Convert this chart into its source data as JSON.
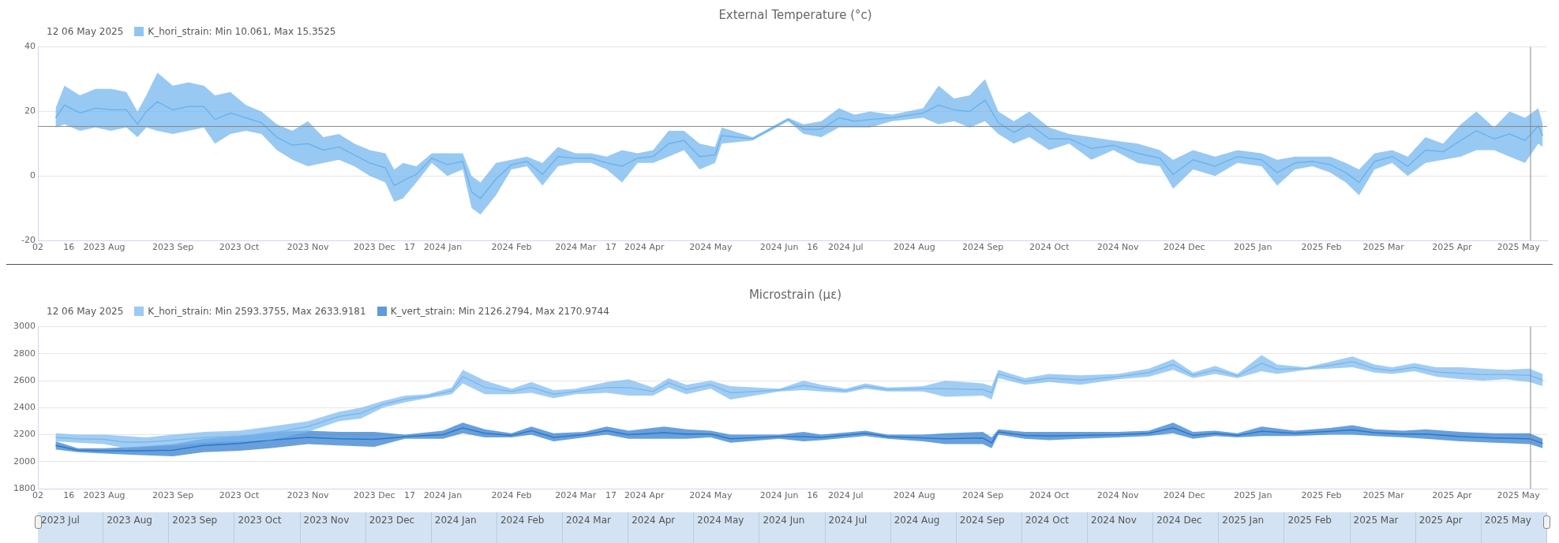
{
  "chart_data": [
    {
      "type": "line",
      "title": "External Temperature (°c)",
      "annotations": [
        "12 06 May 2025"
      ],
      "legend": "top left",
      "grid": "y",
      "xlim": [
        "2023-07-02",
        "2025-05-14"
      ],
      "xticks": [
        {
          "value": "2023-07-02",
          "label": "02"
        },
        {
          "value": "2023-07-16",
          "label": "16"
        },
        {
          "value": "2023-08-01",
          "label": "2023 Aug"
        },
        {
          "value": "2023-09-01",
          "label": "2023 Sep"
        },
        {
          "value": "2023-10-01",
          "label": "2023 Oct"
        },
        {
          "value": "2023-11-01",
          "label": "2023 Nov"
        },
        {
          "value": "2023-12-01",
          "label": "2023 Dec"
        },
        {
          "value": "2023-12-17",
          "label": "17"
        },
        {
          "value": "2024-01-01",
          "label": "2024 Jan"
        },
        {
          "value": "2024-02-01",
          "label": "2024 Feb"
        },
        {
          "value": "2024-03-01",
          "label": "2024 Mar"
        },
        {
          "value": "2024-03-17",
          "label": "17"
        },
        {
          "value": "2024-04-01",
          "label": "2024 Apr"
        },
        {
          "value": "2024-05-01",
          "label": "2024 May"
        },
        {
          "value": "2024-06-01",
          "label": "2024 Jun"
        },
        {
          "value": "2024-06-16",
          "label": "16"
        },
        {
          "value": "2024-07-01",
          "label": "2024 Jul"
        },
        {
          "value": "2024-08-01",
          "label": "2024 Aug"
        },
        {
          "value": "2024-09-01",
          "label": "2024 Sep"
        },
        {
          "value": "2024-10-01",
          "label": "2024 Oct"
        },
        {
          "value": "2024-11-01",
          "label": "2024 Nov"
        },
        {
          "value": "2024-12-01",
          "label": "2024 Dec"
        },
        {
          "value": "2025-01-01",
          "label": "2025 Jan"
        },
        {
          "value": "2025-02-01",
          "label": "2025 Feb"
        },
        {
          "value": "2025-03-01",
          "label": "2025 Mar"
        },
        {
          "value": "2025-04-01",
          "label": "2025 Apr"
        },
        {
          "value": "2025-05-01",
          "label": "2025 May"
        }
      ],
      "ylim": [
        -20,
        40
      ],
      "yticks": [
        -20,
        0,
        20,
        40
      ],
      "ref_lines": [
        {
          "axis": "y",
          "value": 15.35,
          "color": "#888888"
        },
        {
          "axis": "x",
          "value": "2025-05-06T12:00",
          "color": "#888888"
        }
      ],
      "series": [
        {
          "name": "K_hori_strain: Min 10.061, Max 15.3525",
          "color": "#6cb2ec",
          "x": [
            "2023-07-10",
            "2023-07-14",
            "2023-07-21",
            "2023-07-28",
            "2023-08-04",
            "2023-08-11",
            "2023-08-16",
            "2023-08-20",
            "2023-08-25",
            "2023-09-01",
            "2023-09-08",
            "2023-09-15",
            "2023-09-20",
            "2023-09-27",
            "2023-10-04",
            "2023-10-11",
            "2023-10-18",
            "2023-10-25",
            "2023-11-01",
            "2023-11-08",
            "2023-11-15",
            "2023-11-22",
            "2023-11-29",
            "2023-12-06",
            "2023-12-10",
            "2023-12-14",
            "2023-12-20",
            "2023-12-27",
            "2024-01-03",
            "2024-01-10",
            "2024-01-14",
            "2024-01-18",
            "2024-01-25",
            "2024-02-01",
            "2024-02-08",
            "2024-02-15",
            "2024-02-22",
            "2024-03-01",
            "2024-03-08",
            "2024-03-15",
            "2024-03-22",
            "2024-03-29",
            "2024-04-05",
            "2024-04-12",
            "2024-04-19",
            "2024-04-26",
            "2024-05-03",
            "2024-05-06",
            "2024-05-20",
            "2024-06-05",
            "2024-06-12",
            "2024-06-20",
            "2024-06-28",
            "2024-07-05",
            "2024-07-12",
            "2024-07-22",
            "2024-08-05",
            "2024-08-12",
            "2024-08-19",
            "2024-08-26",
            "2024-09-02",
            "2024-09-08",
            "2024-09-15",
            "2024-09-22",
            "2024-10-01",
            "2024-10-10",
            "2024-10-20",
            "2024-10-30",
            "2024-11-10",
            "2024-11-20",
            "2024-11-26",
            "2024-12-05",
            "2024-12-15",
            "2024-12-25",
            "2025-01-05",
            "2025-01-12",
            "2025-01-20",
            "2025-01-28",
            "2025-02-05",
            "2025-02-12",
            "2025-02-18",
            "2025-02-25",
            "2025-03-05",
            "2025-03-12",
            "2025-03-20",
            "2025-03-28",
            "2025-04-05",
            "2025-04-12",
            "2025-04-20",
            "2025-04-27",
            "2025-05-04",
            "2025-05-10",
            "2025-05-12"
          ],
          "lower": [
            15,
            16,
            14,
            15,
            14,
            15,
            12,
            15,
            14,
            13,
            14,
            15,
            10,
            13,
            14,
            13,
            8,
            5,
            3,
            4,
            5,
            3,
            0,
            -2,
            -8,
            -7,
            -2,
            4,
            0,
            2,
            -10,
            -12,
            -6,
            2,
            3,
            -3,
            3,
            4,
            4,
            2,
            -2,
            4,
            4,
            6,
            8,
            2,
            4,
            10,
            11,
            17,
            13,
            12,
            15,
            15,
            15,
            17,
            18,
            16,
            17,
            15,
            17,
            13,
            10,
            12,
            8,
            10,
            5,
            8,
            4,
            3,
            -4,
            2,
            0,
            4,
            3,
            -3,
            2,
            3,
            1,
            -2,
            -6,
            2,
            4,
            0,
            4,
            5,
            6,
            8,
            8,
            6,
            4,
            10,
            9
          ],
          "upper": [
            21,
            28,
            25,
            27,
            27,
            26,
            20,
            25,
            32,
            28,
            29,
            28,
            25,
            26,
            22,
            20,
            16,
            14,
            17,
            12,
            13,
            10,
            8,
            7,
            2,
            4,
            3,
            7,
            7,
            7,
            0,
            -2,
            4,
            5,
            6,
            4,
            9,
            7,
            7,
            6,
            8,
            7,
            8,
            14,
            14,
            10,
            9,
            15,
            12,
            18,
            16,
            17,
            21,
            19,
            20,
            19,
            21,
            28,
            24,
            25,
            30,
            20,
            17,
            20,
            15,
            13,
            12,
            11,
            10,
            8,
            5,
            8,
            6,
            8,
            7,
            5,
            6,
            6,
            6,
            4,
            2,
            7,
            8,
            6,
            12,
            10,
            16,
            20,
            15,
            20,
            18,
            21,
            16
          ],
          "values": [
            18,
            22,
            19.5,
            21,
            20.5,
            20.5,
            16,
            20,
            23,
            20.5,
            21.5,
            21.5,
            17.5,
            19.5,
            18,
            16.5,
            12,
            9.5,
            10,
            8,
            9,
            6.5,
            4,
            2.5,
            -3,
            -1.5,
            0.5,
            5.5,
            3.5,
            4.5,
            -5,
            -7,
            -1,
            3.5,
            4.5,
            0.5,
            6,
            5.5,
            5.5,
            4,
            3,
            5.5,
            6,
            10,
            11,
            6,
            6.5,
            12.5,
            11.5,
            17.5,
            14.5,
            14.5,
            18,
            17,
            17.5,
            18,
            19.5,
            22,
            20.5,
            20,
            23.5,
            16.5,
            13.5,
            16,
            11.5,
            11.5,
            8.5,
            9.5,
            7,
            5.5,
            0.5,
            5,
            3,
            6,
            5,
            1,
            4,
            4.5,
            3.5,
            1,
            -2,
            4.5,
            6,
            3,
            8,
            7.5,
            11,
            14,
            11.5,
            13,
            11,
            15.5,
            12.5
          ]
        }
      ]
    },
    {
      "type": "line",
      "title": "Microstrain (με)",
      "annotations": [
        "12 06 May 2025"
      ],
      "legend": "top left",
      "grid": "y",
      "xlim": [
        "2023-07-02",
        "2025-05-14"
      ],
      "xticks": [
        {
          "value": "2023-07-02",
          "label": "02"
        },
        {
          "value": "2023-07-16",
          "label": "16"
        },
        {
          "value": "2023-08-01",
          "label": "2023 Aug"
        },
        {
          "value": "2023-09-01",
          "label": "2023 Sep"
        },
        {
          "value": "2023-10-01",
          "label": "2023 Oct"
        },
        {
          "value": "2023-11-01",
          "label": "2023 Nov"
        },
        {
          "value": "2023-12-01",
          "label": "2023 Dec"
        },
        {
          "value": "2023-12-17",
          "label": "17"
        },
        {
          "value": "2024-01-01",
          "label": "2024 Jan"
        },
        {
          "value": "2024-02-01",
          "label": "2024 Feb"
        },
        {
          "value": "2024-03-01",
          "label": "2024 Mar"
        },
        {
          "value": "2024-03-17",
          "label": "17"
        },
        {
          "value": "2024-04-01",
          "label": "2024 Apr"
        },
        {
          "value": "2024-05-01",
          "label": "2024 May"
        },
        {
          "value": "2024-06-01",
          "label": "2024 Jun"
        },
        {
          "value": "2024-06-16",
          "label": "16"
        },
        {
          "value": "2024-07-01",
          "label": "2024 Jul"
        },
        {
          "value": "2024-08-01",
          "label": "2024 Aug"
        },
        {
          "value": "2024-09-01",
          "label": "2024 Sep"
        },
        {
          "value": "2024-10-01",
          "label": "2024 Oct"
        },
        {
          "value": "2024-11-01",
          "label": "2024 Nov"
        },
        {
          "value": "2024-12-01",
          "label": "2024 Dec"
        },
        {
          "value": "2025-01-01",
          "label": "2025 Jan"
        },
        {
          "value": "2025-02-01",
          "label": "2025 Feb"
        },
        {
          "value": "2025-03-01",
          "label": "2025 Mar"
        },
        {
          "value": "2025-04-01",
          "label": "2025 Apr"
        },
        {
          "value": "2025-05-01",
          "label": "2025 May"
        }
      ],
      "ylim": [
        1800,
        3000
      ],
      "yticks": [
        1800,
        2000,
        2200,
        2400,
        2600,
        2800,
        3000
      ],
      "ref_lines": [
        {
          "axis": "x",
          "value": "2025-05-06T12:00",
          "color": "#888888"
        }
      ],
      "series": [
        {
          "name": "K_hori_strain: Min 2593.3755, Max 2633.9181",
          "color": "#7ab8ee",
          "x": [
            "2023-07-10",
            "2023-07-20",
            "2023-08-01",
            "2023-08-10",
            "2023-08-20",
            "2023-09-01",
            "2023-09-15",
            "2023-10-01",
            "2023-10-15",
            "2023-11-01",
            "2023-11-15",
            "2023-11-25",
            "2023-12-05",
            "2023-12-15",
            "2023-12-25",
            "2024-01-05",
            "2024-01-10",
            "2024-01-20",
            "2024-02-01",
            "2024-02-10",
            "2024-02-20",
            "2024-03-01",
            "2024-03-15",
            "2024-03-25",
            "2024-04-05",
            "2024-04-12",
            "2024-04-20",
            "2024-05-01",
            "2024-05-10",
            "2024-06-01",
            "2024-06-12",
            "2024-06-20",
            "2024-07-01",
            "2024-07-10",
            "2024-07-20",
            "2024-08-05",
            "2024-08-15",
            "2024-09-01",
            "2024-09-05",
            "2024-09-08",
            "2024-09-20",
            "2024-10-01",
            "2024-10-15",
            "2024-11-01",
            "2024-11-15",
            "2024-11-26",
            "2024-12-05",
            "2024-12-15",
            "2024-12-25",
            "2025-01-05",
            "2025-01-12",
            "2025-01-25",
            "2025-02-05",
            "2025-02-15",
            "2025-02-25",
            "2025-03-05",
            "2025-03-15",
            "2025-03-25",
            "2025-04-05",
            "2025-04-15",
            "2025-04-25",
            "2025-05-06",
            "2025-05-12"
          ],
          "lower": [
            2150,
            2140,
            2130,
            2100,
            2110,
            2120,
            2140,
            2150,
            2160,
            2220,
            2300,
            2320,
            2400,
            2440,
            2470,
            2500,
            2580,
            2500,
            2500,
            2510,
            2470,
            2500,
            2510,
            2490,
            2490,
            2550,
            2500,
            2540,
            2460,
            2520,
            2530,
            2520,
            2510,
            2540,
            2520,
            2520,
            2480,
            2490,
            2460,
            2620,
            2570,
            2590,
            2570,
            2610,
            2630,
            2680,
            2620,
            2650,
            2620,
            2670,
            2650,
            2680,
            2690,
            2700,
            2660,
            2650,
            2670,
            2630,
            2610,
            2600,
            2610,
            2590,
            2560
          ],
          "upper": [
            2210,
            2200,
            2200,
            2190,
            2180,
            2200,
            2220,
            2230,
            2260,
            2300,
            2370,
            2400,
            2450,
            2490,
            2500,
            2550,
            2680,
            2600,
            2540,
            2590,
            2530,
            2540,
            2590,
            2610,
            2550,
            2620,
            2570,
            2600,
            2560,
            2540,
            2600,
            2570,
            2540,
            2580,
            2550,
            2560,
            2600,
            2580,
            2560,
            2680,
            2620,
            2650,
            2640,
            2650,
            2690,
            2760,
            2660,
            2710,
            2650,
            2790,
            2720,
            2700,
            2740,
            2780,
            2720,
            2700,
            2730,
            2700,
            2700,
            2690,
            2680,
            2690,
            2650
          ],
          "values": [
            2180,
            2170,
            2165,
            2145,
            2145,
            2160,
            2180,
            2190,
            2210,
            2260,
            2335,
            2360,
            2425,
            2465,
            2485,
            2525,
            2630,
            2550,
            2520,
            2550,
            2500,
            2520,
            2550,
            2550,
            2520,
            2585,
            2535,
            2570,
            2510,
            2530,
            2565,
            2545,
            2525,
            2560,
            2535,
            2540,
            2540,
            2535,
            2510,
            2650,
            2595,
            2620,
            2605,
            2630,
            2660,
            2720,
            2640,
            2680,
            2635,
            2730,
            2685,
            2690,
            2715,
            2740,
            2690,
            2675,
            2700,
            2665,
            2655,
            2645,
            2645,
            2640,
            2605
          ]
        },
        {
          "name": "K_vert_strain: Min 2126.2794, Max 2170.9744",
          "color": "#2a78cc",
          "x": [
            "2023-07-10",
            "2023-07-20",
            "2023-08-01",
            "2023-08-15",
            "2023-09-01",
            "2023-09-15",
            "2023-10-01",
            "2023-10-15",
            "2023-11-01",
            "2023-11-15",
            "2023-12-01",
            "2023-12-15",
            "2024-01-01",
            "2024-01-10",
            "2024-01-20",
            "2024-02-01",
            "2024-02-10",
            "2024-02-20",
            "2024-03-05",
            "2024-03-15",
            "2024-03-25",
            "2024-04-10",
            "2024-04-20",
            "2024-05-01",
            "2024-05-10",
            "2024-06-01",
            "2024-06-12",
            "2024-06-20",
            "2024-07-10",
            "2024-07-20",
            "2024-08-05",
            "2024-08-15",
            "2024-09-01",
            "2024-09-05",
            "2024-09-08",
            "2024-09-20",
            "2024-10-01",
            "2024-10-15",
            "2024-11-01",
            "2024-11-15",
            "2024-11-26",
            "2024-12-05",
            "2024-12-15",
            "2024-12-25",
            "2025-01-05",
            "2025-01-20",
            "2025-02-05",
            "2025-02-15",
            "2025-02-25",
            "2025-03-10",
            "2025-03-20",
            "2025-04-05",
            "2025-04-20",
            "2025-05-06",
            "2025-05-12"
          ],
          "lower": [
            2090,
            2070,
            2060,
            2050,
            2040,
            2070,
            2080,
            2100,
            2130,
            2120,
            2110,
            2170,
            2170,
            2210,
            2180,
            2180,
            2200,
            2150,
            2180,
            2200,
            2170,
            2170,
            2170,
            2180,
            2140,
            2170,
            2150,
            2160,
            2190,
            2170,
            2150,
            2130,
            2130,
            2100,
            2200,
            2170,
            2160,
            2170,
            2180,
            2190,
            2210,
            2170,
            2190,
            2180,
            2190,
            2190,
            2200,
            2200,
            2190,
            2180,
            2170,
            2150,
            2140,
            2130,
            2100
          ],
          "upper": [
            2150,
            2100,
            2100,
            2110,
            2130,
            2170,
            2190,
            2220,
            2230,
            2220,
            2220,
            2200,
            2230,
            2290,
            2240,
            2210,
            2260,
            2210,
            2220,
            2260,
            2230,
            2260,
            2240,
            2230,
            2200,
            2200,
            2220,
            2200,
            2230,
            2200,
            2200,
            2210,
            2220,
            2180,
            2240,
            2220,
            2220,
            2220,
            2220,
            2230,
            2290,
            2220,
            2230,
            2210,
            2260,
            2230,
            2250,
            2270,
            2240,
            2230,
            2240,
            2220,
            2210,
            2210,
            2170
          ],
          "values": [
            2120,
            2085,
            2080,
            2080,
            2085,
            2120,
            2135,
            2160,
            2180,
            2170,
            2165,
            2185,
            2200,
            2250,
            2210,
            2195,
            2230,
            2180,
            2200,
            2230,
            2200,
            2215,
            2205,
            2205,
            2170,
            2185,
            2185,
            2180,
            2210,
            2185,
            2175,
            2170,
            2175,
            2140,
            2220,
            2195,
            2190,
            2195,
            2200,
            2210,
            2250,
            2195,
            2210,
            2195,
            2225,
            2210,
            2225,
            2235,
            2215,
            2205,
            2205,
            2185,
            2175,
            2170,
            2135
          ]
        }
      ]
    },
    {
      "type": "other",
      "categories": [
        "2023 Jul",
        "2023 Aug",
        "2023 Sep",
        "2023 Oct",
        "2023 Nov",
        "2023 Dec",
        "2024 Jan",
        "2024 Feb",
        "2024 Mar",
        "2024 Apr",
        "2024 May",
        "2024 Jun",
        "2024 Jul",
        "2024 Aug",
        "2024 Sep",
        "2024 Oct",
        "2024 Nov",
        "2024 Dec",
        "2025 Jan",
        "2025 Feb",
        "2025 Mar",
        "2025 Apr",
        "2025 May"
      ]
    }
  ]
}
